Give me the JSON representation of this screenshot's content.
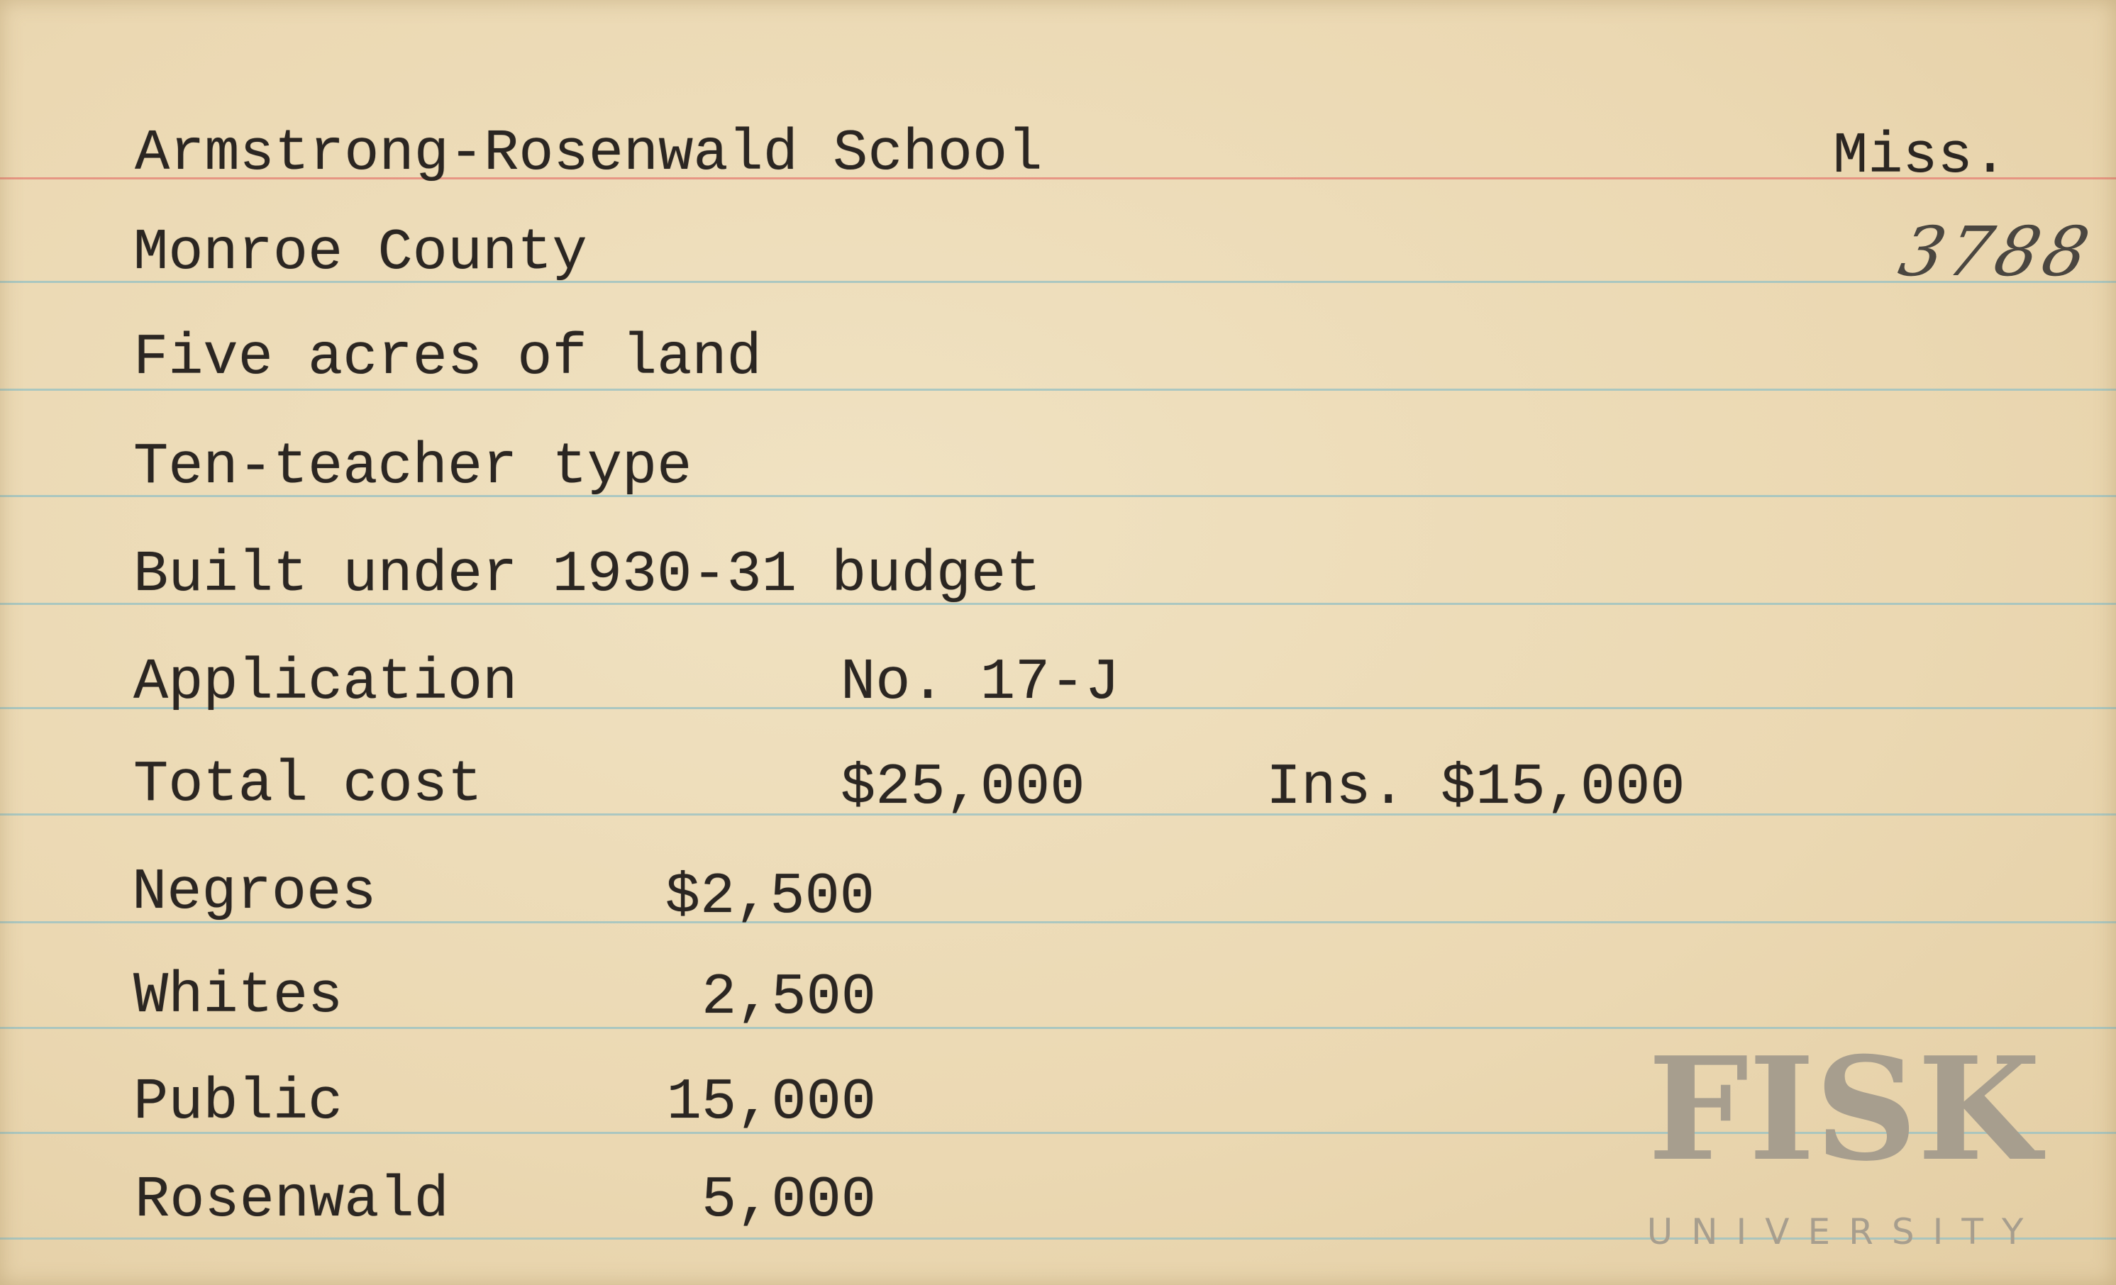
{
  "card": {
    "title": "Armstrong-Rosenwald School",
    "state": "Miss.",
    "handwritten_number": "3788",
    "county": "Monroe County",
    "land": "Five acres of land",
    "type": "Ten-teacher type",
    "budget": "Built under 1930-31 budget",
    "application_label": "Application",
    "application_no": "No. 17-J",
    "total_cost_label": "Total cost",
    "total_cost": "$25,000",
    "insurance": "Ins. $15,000",
    "contributions": [
      {
        "label": "Negroes",
        "amount": "$2,500"
      },
      {
        "label": "Whites",
        "amount": "2,500"
      },
      {
        "label": "Public",
        "amount": "15,000"
      },
      {
        "label": "Rosenwald",
        "amount": "5,000"
      }
    ]
  },
  "watermark": {
    "name": "FISK",
    "subtitle": "UNIVERSITY"
  },
  "colors": {
    "paper": "#ecdcb8",
    "rule_blue": "#9fc3c2",
    "rule_red": "#e58a7a",
    "watermark": "#a79e8e"
  }
}
